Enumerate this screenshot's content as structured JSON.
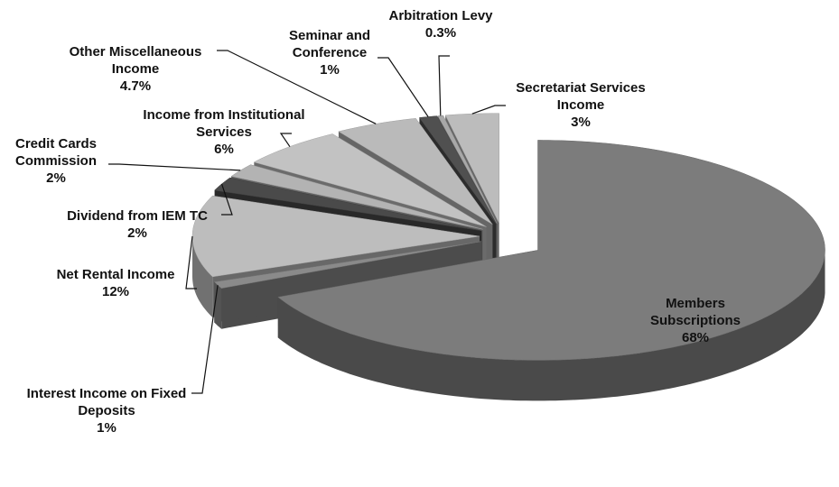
{
  "chart_data": {
    "type": "pie",
    "categories": [
      "Members Subscriptions",
      "Interest Income on Fixed Deposits",
      "Net Rental Income",
      "Dividend from IEM TC",
      "Credit Cards Commission",
      "Income from Institutional Services",
      "Other Miscellaneous Income",
      "Seminar and Conference",
      "Arbitration Levy",
      "Secretariat Services Income"
    ],
    "values": [
      68,
      1,
      12,
      2,
      2,
      6,
      4.7,
      1,
      0.3,
      3
    ],
    "value_labels": [
      "68%",
      "1%",
      "12%",
      "2%",
      "2%",
      "6%",
      "4.7%",
      "1%",
      "0.3%",
      "3%"
    ],
    "colors": [
      "#7c7c7c",
      "#8a8a8a",
      "#bdbdbd",
      "#4a4a4a",
      "#b3b3b3",
      "#c2c2c2",
      "#bababa",
      "#505050",
      "#a8a8a8",
      "#bcbcbc"
    ]
  }
}
